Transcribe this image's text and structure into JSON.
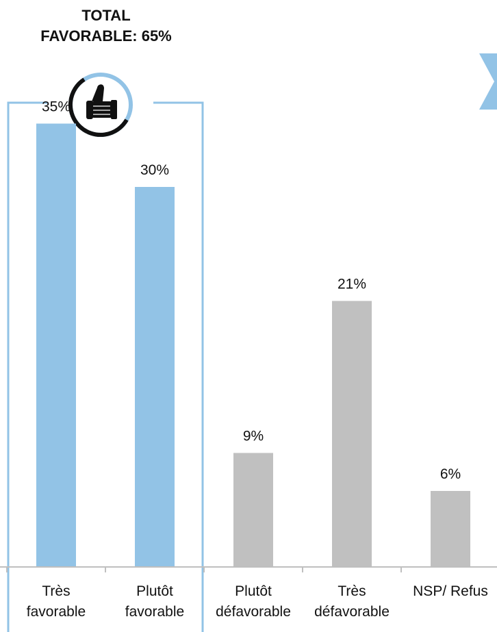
{
  "summary": {
    "line1": "TOTAL",
    "line2": "FAVORABLE: 65%"
  },
  "colors": {
    "favorable": "#92C3E6",
    "other": "#C0C0C0",
    "frame": "#92C3E6",
    "axis": "#BFBFBF",
    "ring_dark": "#111111"
  },
  "icons": {
    "badge": "thumbs-up-icon",
    "corner": "chevron-right-icon"
  },
  "chart_data": {
    "type": "bar",
    "title": "",
    "xlabel": "",
    "ylabel": "",
    "ylim": [
      0,
      40
    ],
    "grid": false,
    "legend": "none",
    "categories": [
      [
        "Très",
        "favorable"
      ],
      [
        "Plutôt",
        "favorable"
      ],
      [
        "Plutôt",
        "défavorable"
      ],
      [
        "Très",
        "défavorable"
      ],
      [
        "NSP/ Refus"
      ]
    ],
    "values": [
      35,
      30,
      9,
      21,
      6
    ],
    "data_labels": [
      "35%",
      "30%",
      "9%",
      "21%",
      "6%"
    ],
    "bar_groups": [
      "favorable",
      "favorable",
      "other",
      "other",
      "other"
    ],
    "highlight": {
      "categories": [
        0,
        1
      ],
      "label": "TOTAL FAVORABLE: 65%",
      "value": 65
    }
  }
}
